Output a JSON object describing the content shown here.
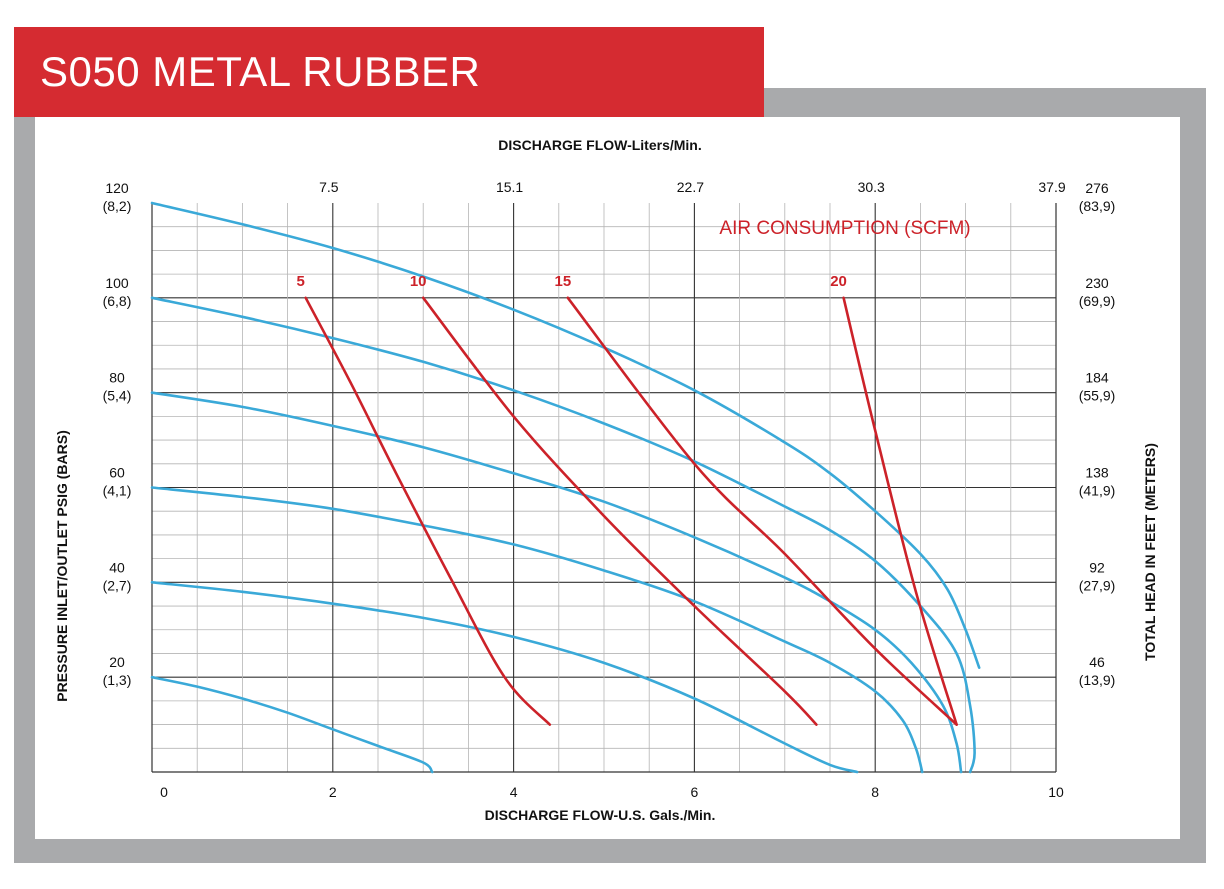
{
  "title": "S050 METAL RUBBER",
  "chart_data": {
    "type": "line",
    "top_axis_title": "DISCHARGE FLOW-Liters/Min.",
    "top_ticks": [
      "7.5",
      "15.1",
      "22.7",
      "30.3",
      "37.9"
    ],
    "xlabel": "DISCHARGE FLOW-U.S. Gals./Min.",
    "x_ticks": [
      "0",
      "2",
      "4",
      "6",
      "8",
      "10"
    ],
    "xlim": [
      0,
      10
    ],
    "ylabel_left": "PRESSURE INLET/OUTLET PSIG (BARS)",
    "ylabel_right": "TOTAL HEAD IN FEET (METERS)",
    "ylim": [
      0,
      120
    ],
    "left_ticks": [
      {
        "value": 120,
        "psig": "120",
        "bars": "(8,2)"
      },
      {
        "value": 100,
        "psig": "100",
        "bars": "(6,8)"
      },
      {
        "value": 80,
        "psig": "80",
        "bars": "(5,4)"
      },
      {
        "value": 60,
        "psig": "60",
        "bars": "(4,1)"
      },
      {
        "value": 40,
        "psig": "40",
        "bars": "(2,7)"
      },
      {
        "value": 20,
        "psig": "20",
        "bars": "(1,3)"
      }
    ],
    "right_ticks": [
      {
        "value": 120,
        "feet": "276",
        "meters": "(83,9)"
      },
      {
        "value": 100,
        "feet": "230",
        "meters": "(69,9)"
      },
      {
        "value": 80,
        "feet": "184",
        "meters": "(55,9)"
      },
      {
        "value": 60,
        "feet": "138",
        "meters": "(41,9)"
      },
      {
        "value": 40,
        "feet": "92",
        "meters": "(27,9)"
      },
      {
        "value": 20,
        "feet": "46",
        "meters": "(13,9)"
      }
    ],
    "air_label": "AIR CONSUMPTION (SCFM)",
    "pressure_curves": [
      {
        "x": [
          0,
          1.0,
          2.0,
          3.0,
          4.0,
          5.0,
          6.0,
          7.0,
          7.5,
          8.0,
          8.5,
          8.8,
          9.0,
          9.15
        ],
        "y": [
          120,
          115.5,
          110.5,
          104.5,
          97.5,
          89.5,
          80.5,
          69.5,
          63,
          55,
          46,
          38.5,
          30,
          22
        ]
      },
      {
        "x": [
          0,
          1.0,
          2.0,
          3.0,
          4.0,
          5.0,
          6.0,
          7.0,
          7.5,
          8.0,
          8.5,
          8.9,
          9.05,
          9.1,
          9.05
        ],
        "y": [
          100,
          96,
          91.5,
          86.5,
          80.5,
          73.5,
          65.5,
          56,
          51,
          44.5,
          35,
          25,
          14,
          4,
          0
        ]
      },
      {
        "x": [
          0,
          1.0,
          2.0,
          3.0,
          4.0,
          5.0,
          6.0,
          7.0,
          7.5,
          8.0,
          8.4,
          8.75,
          8.9,
          8.95
        ],
        "y": [
          80,
          77,
          73,
          68.5,
          63,
          57,
          49.5,
          41,
          36,
          30,
          23,
          14,
          6,
          0
        ]
      },
      {
        "x": [
          0,
          1.0,
          2.0,
          3.0,
          4.0,
          5.0,
          6.0,
          7.0,
          7.5,
          8.0,
          8.3,
          8.45,
          8.52
        ],
        "y": [
          60,
          58,
          55.5,
          52,
          48,
          42.5,
          36,
          27.5,
          23,
          17,
          11,
          5,
          0
        ]
      },
      {
        "x": [
          0,
          1.0,
          2.0,
          3.0,
          4.0,
          5.0,
          6.0,
          7.0,
          7.5,
          7.8
        ],
        "y": [
          40,
          38,
          35.5,
          32.5,
          28.5,
          23,
          15.5,
          6,
          1.5,
          0
        ]
      },
      {
        "x": [
          0,
          0.5,
          1.0,
          1.5,
          2.0,
          2.5,
          3.0,
          3.1
        ],
        "y": [
          20,
          18,
          15.5,
          12.5,
          9,
          5.5,
          2,
          0
        ]
      }
    ],
    "air_curves": [
      {
        "name": "5",
        "x": [
          1.7,
          2.2,
          2.7,
          3.3,
          3.9,
          4.4
        ],
        "y": [
          100,
          82,
          63,
          41,
          20,
          10
        ]
      },
      {
        "name": "10",
        "x": [
          3.0,
          4.0,
          5.0,
          6.0,
          7.0,
          7.35
        ],
        "y": [
          100,
          75,
          54,
          35,
          17,
          10
        ]
      },
      {
        "name": "15",
        "x": [
          4.6,
          6.0,
          7.0,
          8.0,
          8.9
        ],
        "y": [
          100,
          65,
          46,
          26,
          10
        ]
      },
      {
        "name": "20",
        "x": [
          7.65,
          8.0,
          8.45,
          8.9
        ],
        "y": [
          100,
          72,
          38,
          10
        ]
      }
    ],
    "colors": {
      "pressure": "#3aa9d8",
      "air": "#cc2229",
      "grid": "#8d8d8d",
      "title_bar": "#d52b31",
      "frame": "#a9aaac"
    }
  }
}
